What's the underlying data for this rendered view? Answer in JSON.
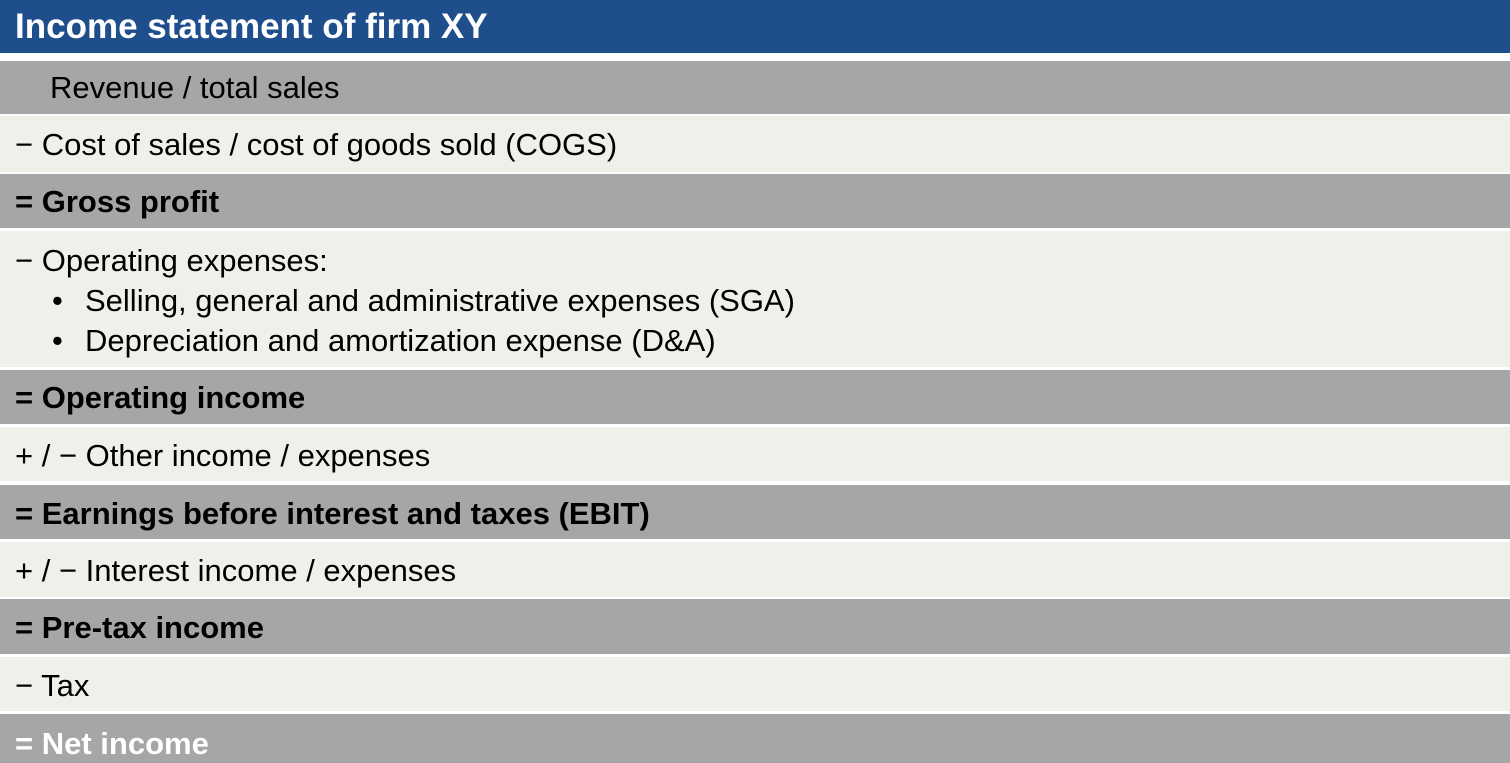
{
  "title": "Income statement of firm XY",
  "rows": {
    "revenue": "Revenue / total sales",
    "cogs": "− Cost of sales / cost of goods sold (COGS)",
    "gross_profit": "= Gross profit",
    "opex_label": "− Operating expenses:",
    "opex_items": [
      "Selling, general and administrative expenses (SGA)",
      "Depreciation and amortization expense (D&A)"
    ],
    "bullet": "•",
    "operating_income": "= Operating income",
    "other_income": "+ / − Other income / expenses",
    "ebit": "= Earnings before interest and taxes (EBIT)",
    "interest": "+ / − Interest income / expenses",
    "pretax": "= Pre-tax income",
    "tax": "− Tax",
    "net_income": "= Net income"
  },
  "colors": {
    "header": "#1f4e8c",
    "gray_row": "#a6a6a6",
    "light_row": "#eff0e9"
  }
}
